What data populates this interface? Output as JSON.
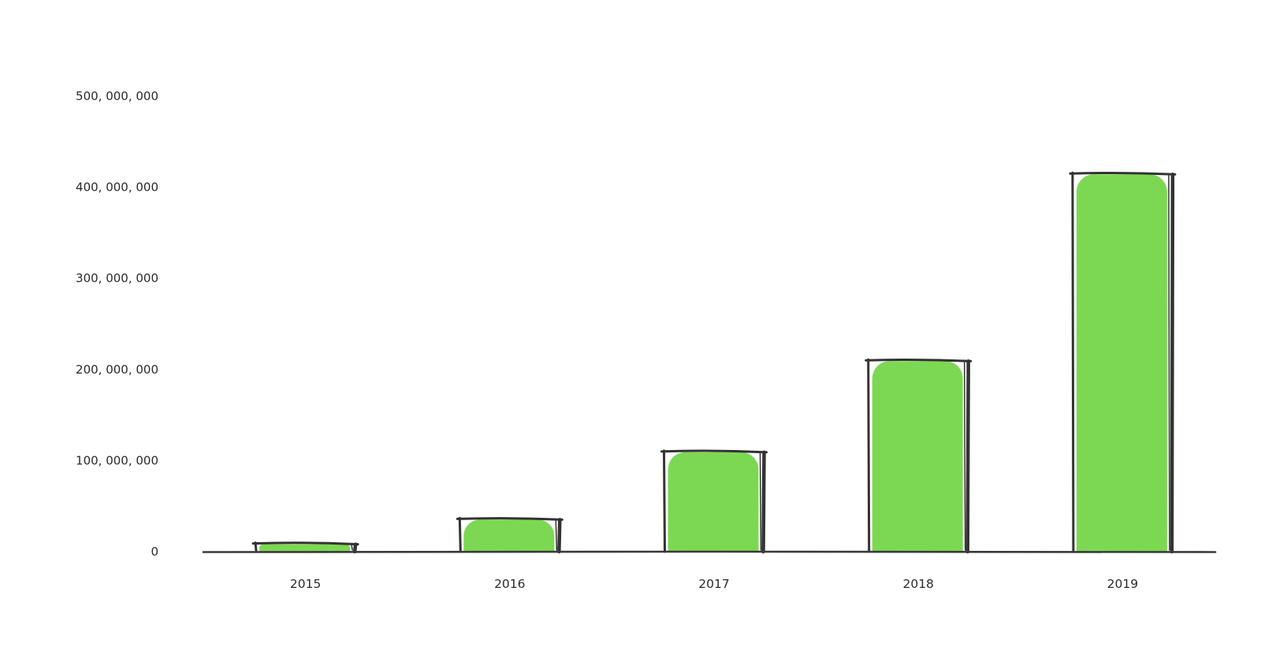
{
  "chart_data": {
    "type": "bar",
    "title": "",
    "xlabel": "",
    "ylabel": "",
    "categories": [
      "2015",
      "2016",
      "2017",
      "2018",
      "2019"
    ],
    "values": [
      9000000,
      36000000,
      110000000,
      210000000,
      415000000
    ],
    "ylim": [
      0,
      500000000
    ],
    "yticks": [
      0,
      100000000,
      200000000,
      300000000,
      400000000,
      500000000
    ],
    "ytick_labels": [
      "0",
      "100, 000, 000",
      "200, 000, 000",
      "300, 000, 000",
      "400, 000, 000",
      "500, 000, 000"
    ],
    "grid": false,
    "legend": "none",
    "style": "hand-drawn",
    "colors": {
      "bar_fill": "#7cd853",
      "bar_outline": "#333333",
      "axis": "#3a3a3a",
      "text": "#2b2b2b",
      "background": "#ffffff"
    }
  }
}
